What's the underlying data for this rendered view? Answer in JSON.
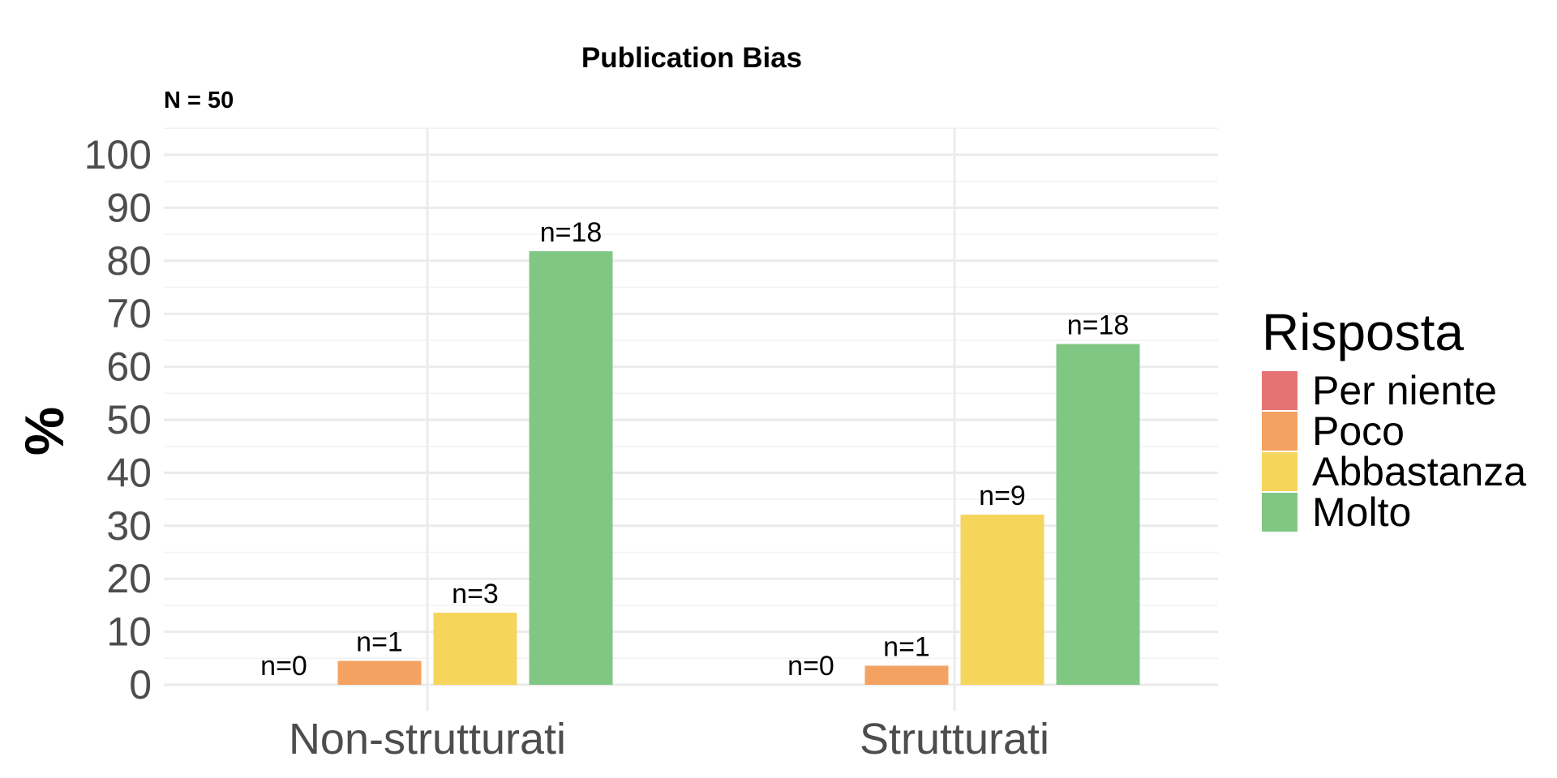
{
  "chart_data": {
    "type": "bar",
    "title": "Publication Bias",
    "subtitle": "N = 50",
    "xlabel": "",
    "ylabel": "%",
    "ylim": [
      0,
      100
    ],
    "yticks": [
      "0",
      "10",
      "20",
      "30",
      "40",
      "50",
      "60",
      "70",
      "80",
      "90",
      "100"
    ],
    "categories": [
      "Non-strutturati",
      "Strutturati"
    ],
    "legend": {
      "title": "Risposta",
      "position": "right"
    },
    "grid": true,
    "series": [
      {
        "name": "Per niente",
        "color": "#e57373",
        "values": [
          0,
          0
        ],
        "labels": [
          "n=0",
          "n=0"
        ]
      },
      {
        "name": "Poco",
        "color": "#f4a261",
        "values": [
          4.5,
          3.6
        ],
        "labels": [
          "n=1",
          "n=1"
        ]
      },
      {
        "name": "Abbastanza",
        "color": "#f6d55c",
        "values": [
          13.6,
          32.1
        ],
        "labels": [
          "n=3",
          "n=9"
        ]
      },
      {
        "name": "Molto",
        "color": "#81c784",
        "values": [
          81.8,
          64.3
        ],
        "labels": [
          "n=18",
          "n=18"
        ]
      }
    ]
  }
}
